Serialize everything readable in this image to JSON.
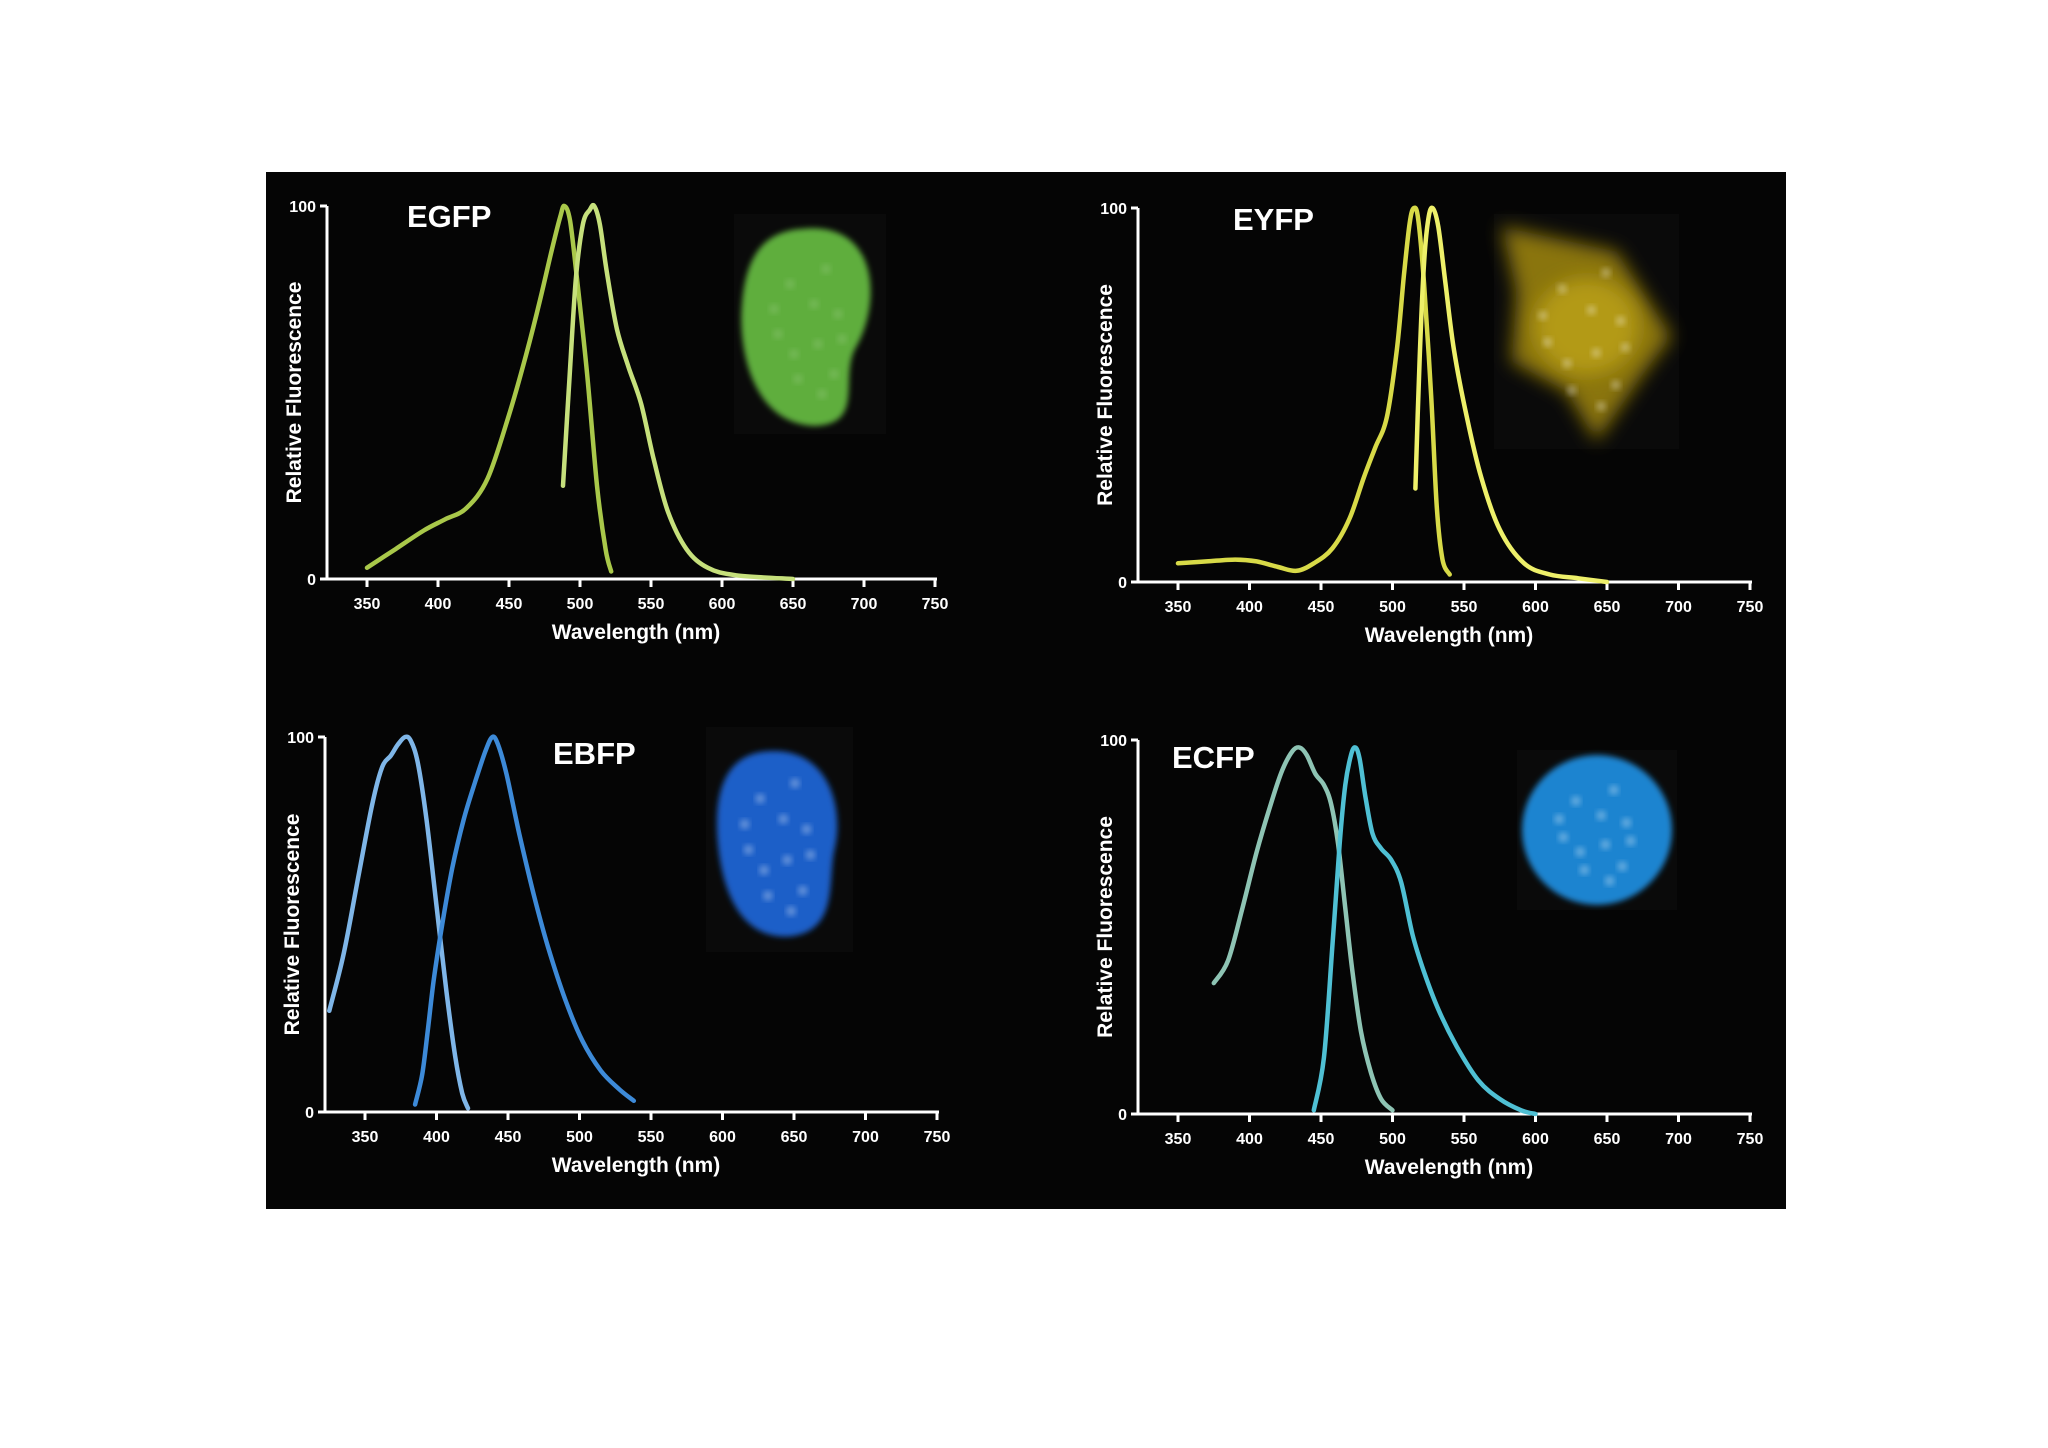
{
  "chart_data": [
    {
      "type": "line",
      "title": "EGFP",
      "xlabel": "Wavelength (nm)",
      "ylabel": "Relative Fluorescence",
      "xlim": [
        325,
        750
      ],
      "ylim": [
        0,
        100
      ],
      "x_ticks": [
        "350",
        "400",
        "450",
        "500",
        "550",
        "600",
        "650",
        "700",
        "750"
      ],
      "y_ticks": [
        "0",
        "100"
      ],
      "grid": false,
      "cell_image_color": "#5fae3c",
      "series": [
        {
          "color": "#a9c84a",
          "points": [
            [
              350,
              3
            ],
            [
              370,
              8
            ],
            [
              390,
              13
            ],
            [
              405,
              16
            ],
            [
              420,
              19
            ],
            [
              435,
              27
            ],
            [
              450,
              44
            ],
            [
              462,
              60
            ],
            [
              472,
              75
            ],
            [
              480,
              88
            ],
            [
              486,
              97
            ],
            [
              489,
              100
            ],
            [
              493,
              96
            ],
            [
              498,
              80
            ],
            [
              505,
              55
            ],
            [
              512,
              25
            ],
            [
              518,
              8
            ],
            [
              522,
              2
            ]
          ]
        },
        {
          "color": "#c6e07c",
          "points": [
            [
              488,
              25
            ],
            [
              492,
              50
            ],
            [
              497,
              80
            ],
            [
              502,
              95
            ],
            [
              507,
              99
            ],
            [
              510,
              100
            ],
            [
              514,
              95
            ],
            [
              519,
              82
            ],
            [
              526,
              67
            ],
            [
              534,
              57
            ],
            [
              543,
              47
            ],
            [
              552,
              32
            ],
            [
              562,
              18
            ],
            [
              575,
              8
            ],
            [
              590,
              3
            ],
            [
              610,
              1
            ],
            [
              650,
              0
            ]
          ]
        }
      ]
    },
    {
      "type": "line",
      "title": "EYFP",
      "xlabel": "Wavelength (nm)",
      "ylabel": "Relative Fluorescence",
      "xlim": [
        325,
        750
      ],
      "ylim": [
        0,
        100
      ],
      "x_ticks": [
        "350",
        "400",
        "450",
        "500",
        "550",
        "600",
        "650",
        "700",
        "750"
      ],
      "y_ticks": [
        "0",
        "100"
      ],
      "grid": false,
      "cell_image_color": "#b39a12",
      "series": [
        {
          "color": "#d8da48",
          "points": [
            [
              350,
              5
            ],
            [
              370,
              5.5
            ],
            [
              390,
              6
            ],
            [
              405,
              5.5
            ],
            [
              420,
              4
            ],
            [
              433,
              3
            ],
            [
              445,
              5
            ],
            [
              458,
              9
            ],
            [
              470,
              17
            ],
            [
              480,
              28
            ],
            [
              488,
              36
            ],
            [
              496,
              44
            ],
            [
              503,
              62
            ],
            [
              508,
              82
            ],
            [
              512,
              96
            ],
            [
              515,
              100
            ],
            [
              518,
              97
            ],
            [
              522,
              80
            ],
            [
              527,
              50
            ],
            [
              531,
              20
            ],
            [
              535,
              6
            ],
            [
              540,
              2
            ]
          ]
        },
        {
          "color": "#eef06a",
          "points": [
            [
              516,
              25
            ],
            [
              519,
              60
            ],
            [
              522,
              85
            ],
            [
              525,
              97
            ],
            [
              528,
              100
            ],
            [
              532,
              95
            ],
            [
              537,
              80
            ],
            [
              543,
              62
            ],
            [
              552,
              44
            ],
            [
              562,
              28
            ],
            [
              575,
              14
            ],
            [
              592,
              5
            ],
            [
              610,
              2
            ],
            [
              630,
              1
            ],
            [
              650,
              0
            ]
          ]
        }
      ]
    },
    {
      "type": "line",
      "title": "EBFP",
      "xlabel": "Wavelength (nm)",
      "ylabel": "Relative Fluorescence",
      "xlim": [
        325,
        750
      ],
      "ylim": [
        0,
        100
      ],
      "x_ticks": [
        "350",
        "400",
        "450",
        "500",
        "550",
        "600",
        "650",
        "700",
        "750"
      ],
      "y_ticks": [
        "0",
        "100"
      ],
      "grid": false,
      "cell_image_color": "#1a5ec8",
      "series": [
        {
          "color": "#7fb6e8",
          "points": [
            [
              325,
              27
            ],
            [
              335,
              42
            ],
            [
              345,
              62
            ],
            [
              355,
              82
            ],
            [
              362,
              92
            ],
            [
              368,
              95
            ],
            [
              373,
              98
            ],
            [
              378,
              100
            ],
            [
              382,
              99
            ],
            [
              387,
              93
            ],
            [
              393,
              78
            ],
            [
              400,
              55
            ],
            [
              407,
              32
            ],
            [
              413,
              15
            ],
            [
              418,
              5
            ],
            [
              422,
              1
            ]
          ]
        },
        {
          "color": "#3d8ad8",
          "points": [
            [
              385,
              2
            ],
            [
              390,
              10
            ],
            [
              394,
              22
            ],
            [
              398,
              35
            ],
            [
              404,
              50
            ],
            [
              411,
              65
            ],
            [
              419,
              78
            ],
            [
              427,
              88
            ],
            [
              434,
              96
            ],
            [
              439,
              100
            ],
            [
              443,
              98
            ],
            [
              449,
              90
            ],
            [
              458,
              74
            ],
            [
              468,
              58
            ],
            [
              478,
              44
            ],
            [
              490,
              30
            ],
            [
              502,
              19
            ],
            [
              515,
              11
            ],
            [
              528,
              6
            ],
            [
              538,
              3
            ]
          ]
        }
      ]
    },
    {
      "type": "line",
      "title": "ECFP",
      "xlabel": "Wavelength (nm)",
      "ylabel": "Relative Fluorescence",
      "xlim": [
        325,
        750
      ],
      "ylim": [
        0,
        100
      ],
      "x_ticks": [
        "350",
        "400",
        "450",
        "500",
        "550",
        "600",
        "650",
        "700",
        "750"
      ],
      "y_ticks": [
        "0",
        "100"
      ],
      "grid": false,
      "cell_image_color": "#1f84d0",
      "series": [
        {
          "color": "#8ec4b4",
          "points": [
            [
              375,
              35
            ],
            [
              385,
              41
            ],
            [
              395,
              55
            ],
            [
              405,
              70
            ],
            [
              415,
              83
            ],
            [
              423,
              92
            ],
            [
              430,
              97
            ],
            [
              435,
              98
            ],
            [
              440,
              96
            ],
            [
              446,
              91
            ],
            [
              452,
              88
            ],
            [
              457,
              83
            ],
            [
              462,
              72
            ],
            [
              467,
              55
            ],
            [
              472,
              38
            ],
            [
              478,
              22
            ],
            [
              485,
              11
            ],
            [
              492,
              4
            ],
            [
              500,
              1
            ]
          ]
        },
        {
          "color": "#4fc0d4",
          "points": [
            [
              445,
              1
            ],
            [
              452,
              15
            ],
            [
              458,
              45
            ],
            [
              463,
              72
            ],
            [
              467,
              88
            ],
            [
              471,
              96
            ],
            [
              474,
              98
            ],
            [
              477,
              95
            ],
            [
              481,
              85
            ],
            [
              486,
              75
            ],
            [
              492,
              71
            ],
            [
              499,
              68
            ],
            [
              506,
              62
            ],
            [
              514,
              48
            ],
            [
              522,
              38
            ],
            [
              532,
              28
            ],
            [
              545,
              18
            ],
            [
              560,
              9
            ],
            [
              575,
              4
            ],
            [
              590,
              1
            ],
            [
              600,
              0
            ]
          ]
        }
      ]
    }
  ]
}
